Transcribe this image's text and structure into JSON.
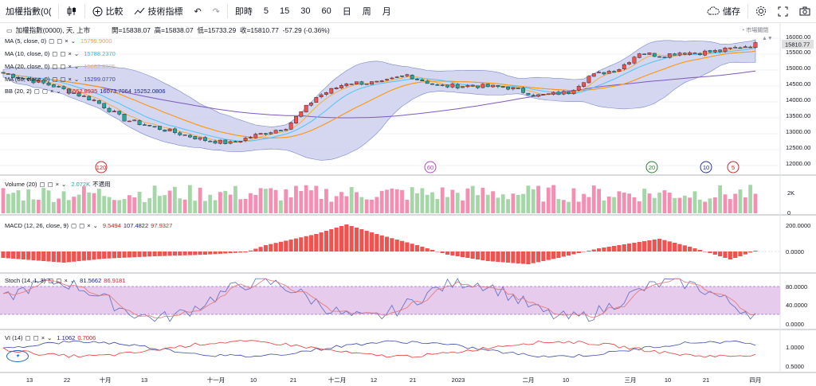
{
  "toolbar": {
    "symbol": "加權指數(0(",
    "compare": "比較",
    "indicators": "技術指標",
    "intervals": [
      "即時",
      "5",
      "15",
      "30",
      "60",
      "日",
      "周",
      "月"
    ],
    "save": "儲存"
  },
  "header": {
    "symbol_name": "加權指數(0000), 天, 上市",
    "open": "開=15838.07",
    "high": "高=15838.07",
    "low": "低=15733.29",
    "close": "收=15810.77",
    "change": "-57.29 (-0.36%)",
    "market_status": "市場關閉",
    "last_price": "15810.77"
  },
  "legends": [
    {
      "label": "MA (5, close, 0)",
      "value": "15799.9000",
      "color": "#f5a623"
    },
    {
      "label": "MA (10, close, 0)",
      "value": "15788.2370",
      "color": "#47b4e0"
    },
    {
      "label": "MA (20, close, 0)",
      "value": "15662.8935",
      "color": "#f3b060"
    },
    {
      "label": "MA (60, close, 0)",
      "value": "15299.0770",
      "color": "#3c3ccd"
    },
    {
      "label": "BB (20, 2)",
      "value": "15662.8935",
      "value2": "16073.7064",
      "value3": "15252.0806",
      "color": "#b71c1c"
    }
  ],
  "volume_legend": {
    "label": "Volume (20)",
    "value": "2.072K",
    "extra": "不適用"
  },
  "macd_legend": {
    "label": "MACD (12, 26, close, 9)",
    "v1": "9.5494",
    "v2": "107.4822",
    "v3": "97.9327"
  },
  "stoch_legend": {
    "label": "Stoch (14, 1, 3)",
    "v1": "81.5662",
    "v2": "86.9181"
  },
  "vi_legend": {
    "label": "VI (14)",
    "v1": "1.1062",
    "v2": "0.7006"
  },
  "price_axis": [
    "16000.00",
    "15500.00",
    "15000.00",
    "14500.00",
    "14000.00",
    "13500.00",
    "13000.00",
    "12500.00",
    "12000.00"
  ],
  "volume_axis": [
    "2K",
    "0"
  ],
  "macd_axis": [
    "200.0000",
    "0.0000"
  ],
  "stoch_axis": [
    "80.0000",
    "40.0000",
    "0.0000"
  ],
  "vi_axis": [
    "1.0000",
    "0.5000"
  ],
  "time_axis": [
    "13",
    "22",
    "十月",
    "13",
    "十一月",
    "10",
    "21",
    "十二月",
    "12",
    "21",
    "2023",
    "二月",
    "10",
    "三月",
    "10",
    "21",
    "四月"
  ],
  "markers": [
    "120",
    "60",
    "20",
    "10",
    "5"
  ],
  "colors": {
    "up": "#ef5350",
    "down": "#26a69a",
    "bb_fill": "#c5cae9",
    "macd": "#ef5350",
    "stoch_band": "#e1bee7"
  },
  "chart_data": {
    "type": "candlestick",
    "note_series": [
      "MA5",
      "MA10",
      "MA20",
      "MA60",
      "BB",
      "Volume",
      "MACD",
      "Stoch",
      "VI"
    ],
    "last_close": 15810.77,
    "ylim": [
      11800,
      16200
    ]
  }
}
